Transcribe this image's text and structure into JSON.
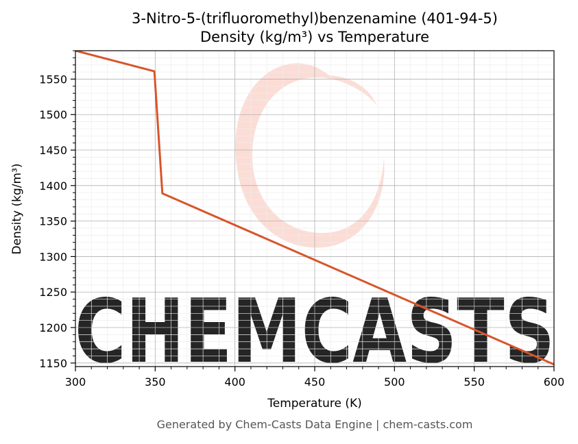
{
  "footer": "Generated by Chem-Casts Data Engine | chem-casts.com",
  "watermark": {
    "text": "CHEMCASTS",
    "color": "#fcd7cf"
  },
  "chart_data": {
    "type": "line",
    "title": "3-Nitro-5-(trifluoromethyl)benzenamine (401-94-5)",
    "subtitle": "Density (kg/m³) vs Temperature",
    "xlabel": "Temperature (K)",
    "ylabel": "Density (kg/m³)",
    "xlim": [
      300,
      600
    ],
    "ylim": [
      1145,
      1590
    ],
    "xticks": [
      300,
      350,
      400,
      450,
      500,
      550,
      600
    ],
    "yticks": [
      1150,
      1200,
      1250,
      1300,
      1350,
      1400,
      1450,
      1500,
      1550
    ],
    "grid": true,
    "series": [
      {
        "color": "#d9542a",
        "x": [
          300,
          349.5,
          354.5,
          600
        ],
        "y": [
          1590,
          1561,
          1389,
          1148
        ]
      }
    ]
  }
}
